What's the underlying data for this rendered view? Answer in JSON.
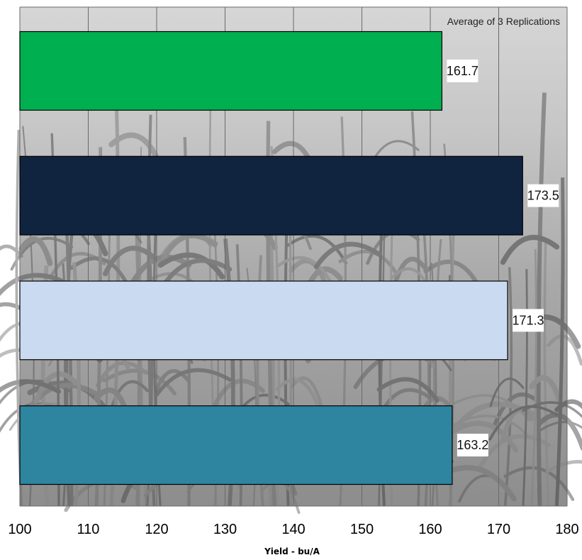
{
  "chart_data": {
    "type": "bar",
    "orientation": "horizontal",
    "title": "",
    "annotation": "Average of 3 Replications",
    "xlabel": "Yield - bu/A",
    "ylabel": "",
    "xlim": [
      100,
      180
    ],
    "x_ticks": [
      "100",
      "110",
      "120",
      "130",
      "140",
      "150",
      "160",
      "170",
      "180"
    ],
    "grid": true,
    "background": "cornfield-photo-grayscale",
    "bars": [
      {
        "value": 161.7,
        "label": "161.7",
        "color": "#00b050"
      },
      {
        "value": 173.5,
        "label": "173.5",
        "color": "#10233f"
      },
      {
        "value": 171.3,
        "label": "171.3",
        "color": "#c9daf1"
      },
      {
        "value": 163.2,
        "label": "163.2",
        "color": "#2e859f"
      }
    ]
  }
}
